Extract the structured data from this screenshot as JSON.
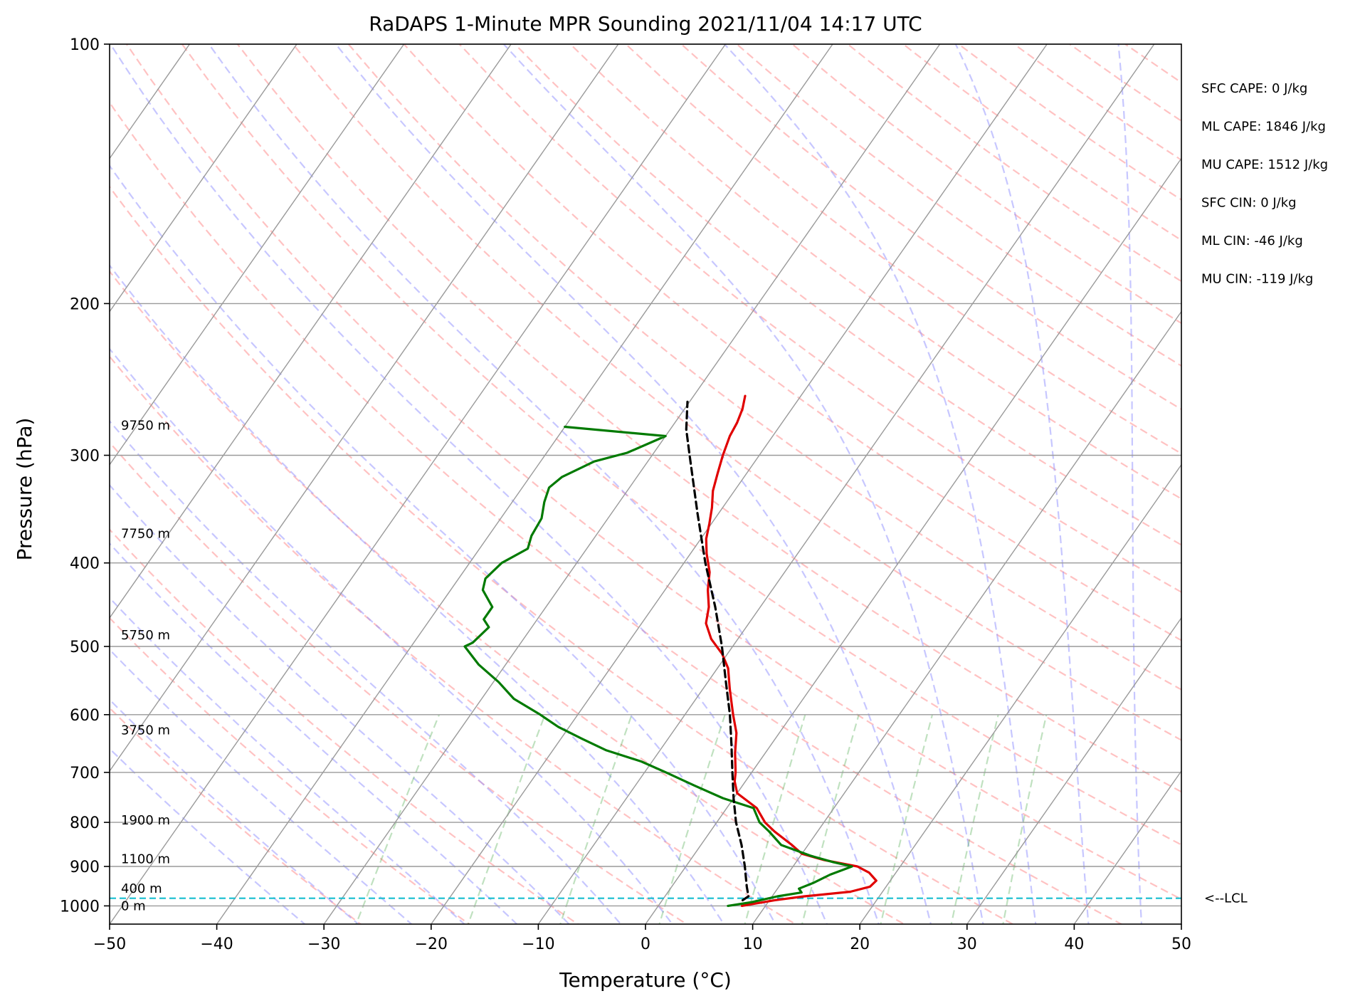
{
  "chart_data": {
    "type": "skew-t",
    "title": "RaDAPS 1-Minute MPR Sounding 2021/11/04 14:17 UTC",
    "xlabel": "Temperature (°C)",
    "ylabel": "Pressure (hPa)",
    "xlim": [
      -50,
      50
    ],
    "ylim": [
      1050,
      100
    ],
    "y_scale": "log",
    "x_ticks": [
      -50,
      -40,
      -30,
      -20,
      -10,
      0,
      10,
      20,
      30,
      40,
      50
    ],
    "x_tick_labels": [
      "−50",
      "−40",
      "−30",
      "−20",
      "−10",
      "0",
      "10",
      "20",
      "30",
      "40",
      "50"
    ],
    "y_ticks": [
      100,
      200,
      300,
      400,
      500,
      600,
      700,
      800,
      900,
      1000
    ],
    "y_tick_labels": [
      "100",
      "200",
      "300",
      "400",
      "500",
      "600",
      "700",
      "800",
      "900",
      "1000"
    ],
    "grid": true,
    "series": [
      {
        "id": "temperature",
        "color": "#e00000",
        "points": [
          [
            1000,
            7.8
          ],
          [
            985,
            10.5
          ],
          [
            975,
            13.0
          ],
          [
            963,
            17.0
          ],
          [
            950,
            18.5
          ],
          [
            935,
            18.7
          ],
          [
            915,
            17.5
          ],
          [
            900,
            16.0
          ],
          [
            885,
            12.5
          ],
          [
            870,
            10.0
          ],
          [
            850,
            8.5
          ],
          [
            820,
            6.0
          ],
          [
            800,
            4.5
          ],
          [
            770,
            2.8
          ],
          [
            740,
            0.0
          ],
          [
            717,
            -1.0
          ],
          [
            700,
            -1.5
          ],
          [
            665,
            -2.8
          ],
          [
            630,
            -4.0
          ],
          [
            600,
            -5.5
          ],
          [
            560,
            -7.5
          ],
          [
            530,
            -9.0
          ],
          [
            510,
            -10.5
          ],
          [
            490,
            -12.5
          ],
          [
            470,
            -14.0
          ],
          [
            450,
            -14.8
          ],
          [
            430,
            -16.0
          ],
          [
            410,
            -17.0
          ],
          [
            390,
            -18.5
          ],
          [
            375,
            -19.5
          ],
          [
            360,
            -20.2
          ],
          [
            345,
            -21.0
          ],
          [
            330,
            -22.0
          ],
          [
            315,
            -22.7
          ],
          [
            300,
            -23.4
          ],
          [
            285,
            -24.0
          ],
          [
            275,
            -24.2
          ],
          [
            265,
            -24.6
          ],
          [
            256,
            -25.2
          ]
        ]
      },
      {
        "id": "dewpoint",
        "color": "#007a00",
        "points": [
          [
            1000,
            6.5
          ],
          [
            990,
            8.5
          ],
          [
            975,
            10.5
          ],
          [
            965,
            12.5
          ],
          [
            955,
            12.0
          ],
          [
            940,
            13.0
          ],
          [
            920,
            14.0
          ],
          [
            900,
            15.5
          ],
          [
            890,
            13.5
          ],
          [
            875,
            11.0
          ],
          [
            850,
            7.5
          ],
          [
            820,
            5.5
          ],
          [
            800,
            4.0
          ],
          [
            770,
            2.5
          ],
          [
            750,
            -1.0
          ],
          [
            725,
            -4.5
          ],
          [
            700,
            -8.0
          ],
          [
            680,
            -11.0
          ],
          [
            660,
            -15.0
          ],
          [
            640,
            -18.0
          ],
          [
            620,
            -21.0
          ],
          [
            600,
            -23.5
          ],
          [
            575,
            -27.0
          ],
          [
            550,
            -29.5
          ],
          [
            525,
            -32.5
          ],
          [
            500,
            -35.0
          ],
          [
            495,
            -34.5
          ],
          [
            475,
            -34.0
          ],
          [
            465,
            -35.0
          ],
          [
            450,
            -35.0
          ],
          [
            430,
            -37.0
          ],
          [
            417,
            -37.5
          ],
          [
            400,
            -37.0
          ],
          [
            385,
            -35.5
          ],
          [
            372,
            -36.0
          ],
          [
            355,
            -36.2
          ],
          [
            340,
            -37.0
          ],
          [
            327,
            -37.5
          ],
          [
            318,
            -37.0
          ],
          [
            305,
            -35.0
          ],
          [
            298,
            -32.5
          ],
          [
            285,
            -30.0
          ],
          [
            278,
            -40.0
          ]
        ]
      },
      {
        "id": "parcel",
        "color": "#000000",
        "style": "dashed",
        "points": [
          [
            985,
            7.5
          ],
          [
            975,
            7.8
          ],
          [
            950,
            7.0
          ],
          [
            900,
            5.5
          ],
          [
            850,
            3.8
          ],
          [
            800,
            1.8
          ],
          [
            750,
            0.0
          ],
          [
            700,
            -1.8
          ],
          [
            650,
            -3.7
          ],
          [
            600,
            -5.8
          ],
          [
            550,
            -8.3
          ],
          [
            500,
            -11.0
          ],
          [
            450,
            -14.2
          ],
          [
            400,
            -18.0
          ],
          [
            350,
            -22.0
          ],
          [
            300,
            -26.5
          ],
          [
            280,
            -28.5
          ],
          [
            260,
            -30.2
          ]
        ]
      }
    ],
    "lcl_pressure": 980,
    "lcl_label": "<--LCL",
    "height_labels": [
      {
        "text": "0 m",
        "p": 1000
      },
      {
        "text": "400 m",
        "p": 955
      },
      {
        "text": "1100 m",
        "p": 882
      },
      {
        "text": "1900 m",
        "p": 795
      },
      {
        "text": "3750 m",
        "p": 625
      },
      {
        "text": "5750 m",
        "p": 485
      },
      {
        "text": "7750 m",
        "p": 370
      },
      {
        "text": "9750 m",
        "p": 277
      }
    ],
    "stats": [
      "SFC CAPE: 0 J/kg",
      "ML CAPE: 1846 J/kg",
      "MU CAPE: 1512 J/kg",
      "SFC CIN: 0 J/kg",
      "ML CIN: -46 J/kg",
      "MU CIN: -119 J/kg"
    ]
  }
}
